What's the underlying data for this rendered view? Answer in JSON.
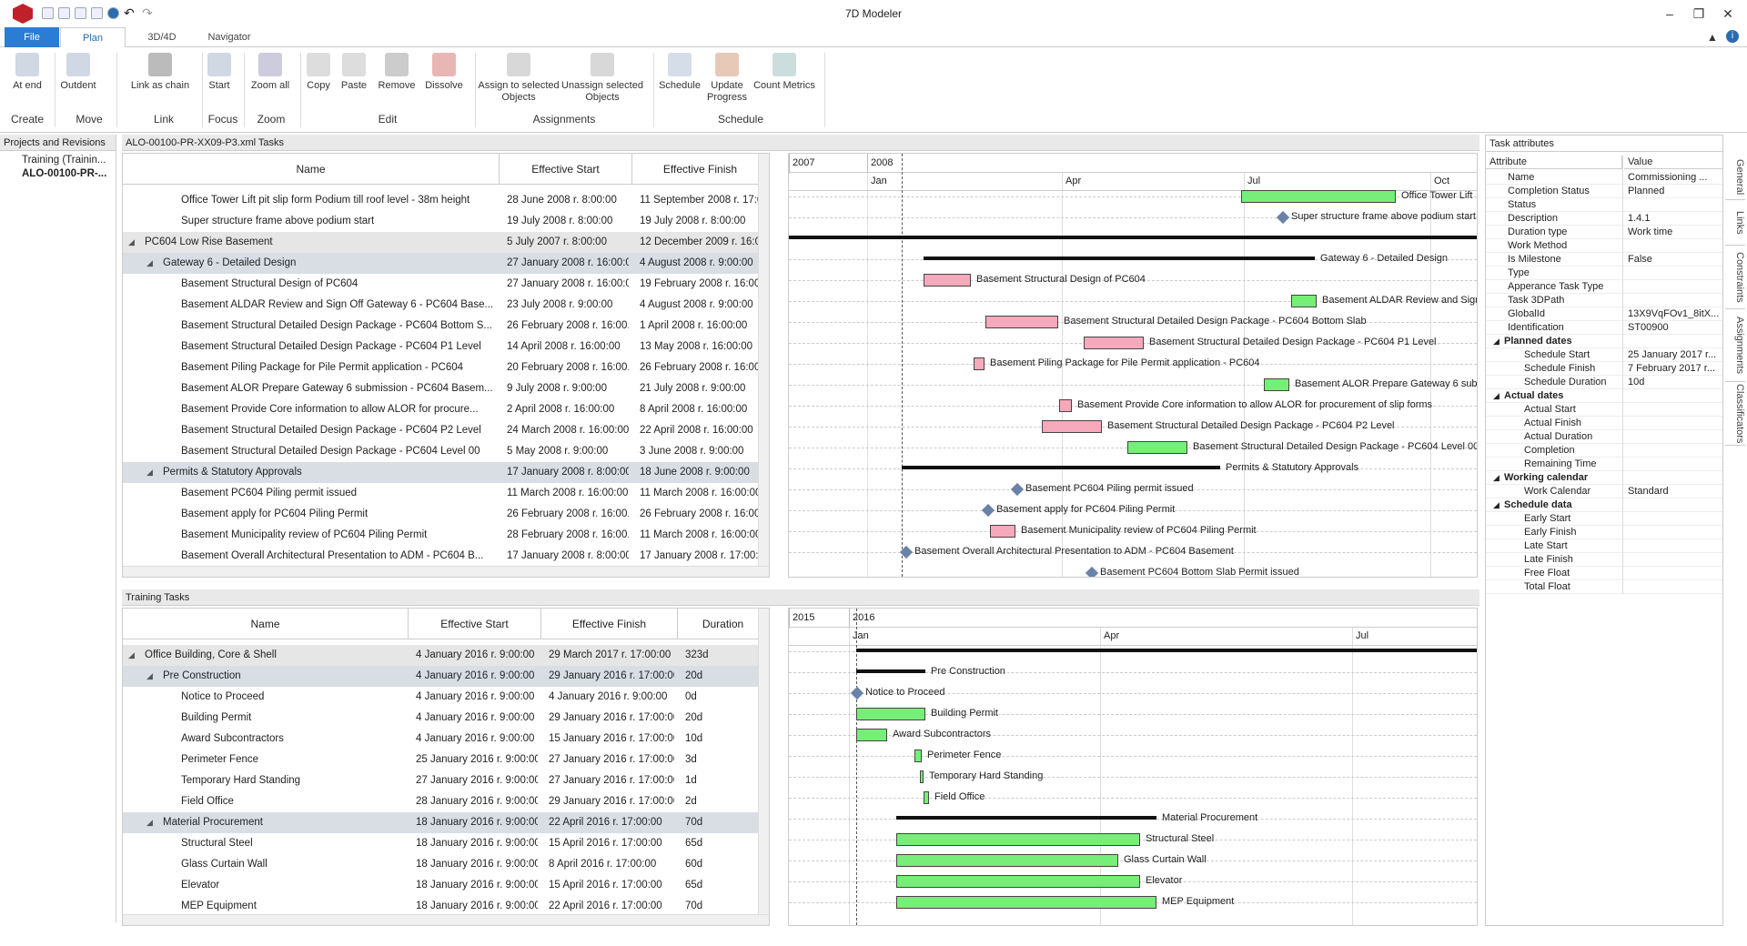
{
  "app": {
    "title": "7D Modeler"
  },
  "tabs": [
    "File",
    "Plan",
    "3D/4D",
    "Navigator"
  ],
  "ribbon": {
    "buttons": [
      {
        "label": "At end",
        "group": "Create",
        "icon": "insert-at-end-icon"
      },
      {
        "label": "Outdent",
        "group": "Move",
        "icon": "outdent-icon"
      },
      {
        "label": "Link as chain",
        "group": "Link",
        "icon": "link-chain-icon"
      },
      {
        "label": "Start",
        "group": "Focus",
        "icon": "focus-start-icon"
      },
      {
        "label": "Zoom all",
        "group": "Zoom",
        "icon": "zoom-all-icon"
      },
      {
        "label": "Copy",
        "group": "Edit",
        "icon": "copy-icon"
      },
      {
        "label": "Paste",
        "group": "Edit",
        "icon": "paste-icon"
      },
      {
        "label": "Remove",
        "group": "Edit",
        "icon": "trash-icon"
      },
      {
        "label": "Dissolve",
        "group": "Edit",
        "icon": "dissolve-icon"
      },
      {
        "label": "Assign to selected Objects",
        "group": "Assignments",
        "icon": "assign-icon"
      },
      {
        "label": "Unassign selected Objects",
        "group": "Assignments",
        "icon": "unassign-icon"
      },
      {
        "label": "Schedule",
        "group": "Schedule",
        "icon": "schedule-icon"
      },
      {
        "label": "Update Progress",
        "group": "Schedule",
        "icon": "update-progress-icon"
      },
      {
        "label": "Count Metrics",
        "group": "Schedule",
        "icon": "count-metrics-icon"
      }
    ],
    "groups": [
      "Create",
      "Move",
      "Link",
      "Focus",
      "Zoom",
      "Edit",
      "Assignments",
      "Schedule"
    ]
  },
  "projects": {
    "header": "Projects and Revisions",
    "items": [
      "Training (Trainin...",
      "ALO-00100-PR-..."
    ]
  },
  "top": {
    "title": "ALO-00100-PR-XX09-P3.xml Tasks",
    "columns": [
      "Name",
      "Effective Start",
      "Effective Finish"
    ],
    "rows": [
      {
        "name": "Office Tower Lift pit slip form Podium till roof level - 38m height",
        "start": "28 June 2008 r. 8:00:00",
        "finish": "11 September 2008 r. 17:0..."
      },
      {
        "name": "Super structure frame above podium start",
        "start": "19 July 2008 r. 8:00:00",
        "finish": "19 July 2008 r. 8:00:00"
      },
      {
        "name": "PC604 Low Rise Basement",
        "start": "5 July 2007 r. 8:00:00",
        "finish": "12 December 2009 r. 16:0..."
      },
      {
        "name": "Gateway 6 - Detailed Design",
        "start": "27 January 2008 r. 16:00:00",
        "finish": "4 August 2008 r. 9:00:00"
      },
      {
        "name": "Basement Structural Design of PC604",
        "start": "27 January 2008 r. 16:00:00",
        "finish": "19 February 2008 r. 16:00:00"
      },
      {
        "name": "Basement ALDAR Review and Sign Off Gateway 6 - PC604 Base...",
        "start": "23 July 2008 r. 9:00:00",
        "finish": "4 August 2008 r. 9:00:00"
      },
      {
        "name": "Basement Structural Detailed Design Package - PC604 Bottom S...",
        "start": "26 February 2008 r. 16:00...",
        "finish": "1 April 2008 r. 16:00:00"
      },
      {
        "name": "Basement Structural Detailed Design Package - PC604 P1 Level",
        "start": "14 April 2008 r. 16:00:00",
        "finish": "13 May 2008 r. 16:00:00"
      },
      {
        "name": "Basement Piling Package for Pile Permit application - PC604",
        "start": "20 February 2008 r. 16:00...",
        "finish": "26 February 2008 r. 16:00:00"
      },
      {
        "name": "Basement ALOR Prepare Gateway 6 submission - PC604 Basem...",
        "start": "9 July 2008 r. 9:00:00",
        "finish": "21 July 2008 r. 9:00:00"
      },
      {
        "name": "Basement Provide Core information to allow ALOR for procure...",
        "start": "2 April 2008 r. 16:00:00",
        "finish": "8 April 2008 r. 16:00:00"
      },
      {
        "name": "Basement Structural Detailed Design Package - PC604 P2 Level",
        "start": "24 March 2008 r. 16:00:00",
        "finish": "22 April 2008 r. 16:00:00"
      },
      {
        "name": "Basement Structural Detailed Design Package - PC604 Level 00",
        "start": "5 May 2008 r. 9:00:00",
        "finish": "3 June 2008 r. 9:00:00"
      },
      {
        "name": "Permits & Statutory Approvals",
        "start": "17 January 2008 r. 8:00:00",
        "finish": "18 June 2008 r. 9:00:00"
      },
      {
        "name": "Basement PC604 Piling permit issued",
        "start": "11 March 2008 r. 16:00:00",
        "finish": "11 March 2008 r. 16:00:00"
      },
      {
        "name": "Basement apply for PC604 Piling Permit",
        "start": "26 February 2008 r. 16:00...",
        "finish": "26 February 2008 r. 16:00:00"
      },
      {
        "name": "Basement Municipality review of PC604 Piling Permit",
        "start": "28 February 2008 r. 16:00...",
        "finish": "11 March 2008 r. 16:00:00"
      },
      {
        "name": "Basement Overall Architectural Presentation to ADM - PC604 B...",
        "start": "17 January 2008 r. 8:00:00",
        "finish": "17 January 2008 r. 17:00:00"
      }
    ],
    "scale": {
      "years": [
        "2007",
        "2008"
      ],
      "months": [
        "Jan",
        "Apr",
        "Jul",
        "Oct"
      ]
    },
    "labels": [
      "Office Tower Lift",
      "Super structure frame above podium start",
      "Gateway 6 - Detailed Design",
      "Basement Structural Design of PC604",
      "Basement ALDAR Review and Sign",
      "Basement Structural Detailed Design Package - PC604 Bottom Slab",
      "Basement Structural Detailed Design Package - PC604 P1 Level",
      "Basement Piling Package for Pile Permit application - PC604",
      "Basement ALOR Prepare Gateway 6 subm",
      "Basement Provide Core information to allow ALOR for procurement of slip forms",
      "Basement Structural Detailed Design Package - PC604 P2 Level",
      "Basement Structural Detailed Design Package - PC604 Level 00",
      "Permits & Statutory Approvals",
      "Basement PC604 Piling permit issued",
      "Basement apply for PC604 Piling Permit",
      "Basement Municipality review of PC604 Piling Permit",
      "Basement Overall Architectural Presentation to ADM - PC604 Basement",
      "Basement PC604 Bottom Slab Permit issued"
    ]
  },
  "bottom": {
    "title": "Training Tasks",
    "columns": [
      "Name",
      "Effective Start",
      "Effective Finish",
      "Duration"
    ],
    "rows": [
      {
        "name": "Office Building, Core & Shell",
        "start": "4 January 2016 r. 9:00:00",
        "finish": "29 March 2017 r. 17:00:00",
        "dur": "323d"
      },
      {
        "name": "Pre Construction",
        "start": "4 January 2016 r. 9:00:00",
        "finish": "29 January 2016 r. 17:00:00",
        "dur": "20d"
      },
      {
        "name": "Notice to Proceed",
        "start": "4 January 2016 r. 9:00:00",
        "finish": "4 January 2016 r. 9:00:00",
        "dur": "0d"
      },
      {
        "name": "Building Permit",
        "start": "4 January 2016 r. 9:00:00",
        "finish": "29 January 2016 r. 17:00:00",
        "dur": "20d"
      },
      {
        "name": "Award Subcontractors",
        "start": "4 January 2016 r. 9:00:00",
        "finish": "15 January 2016 r. 17:00:00",
        "dur": "10d"
      },
      {
        "name": "Perimeter Fence",
        "start": "25 January 2016 r. 9:00:00",
        "finish": "27 January 2016 r. 17:00:00",
        "dur": "3d"
      },
      {
        "name": "Temporary Hard Standing",
        "start": "27 January 2016 r. 9:00:00",
        "finish": "27 January 2016 r. 17:00:00",
        "dur": "1d"
      },
      {
        "name": "Field Office",
        "start": "28 January 2016 r. 9:00:00",
        "finish": "29 January 2016 r. 17:00:00",
        "dur": "2d"
      },
      {
        "name": "Material Procurement",
        "start": "18 January 2016 r. 9:00:00",
        "finish": "22 April 2016 r. 17:00:00",
        "dur": "70d"
      },
      {
        "name": "Structural Steel",
        "start": "18 January 2016 r. 9:00:00",
        "finish": "15 April 2016 r. 17:00:00",
        "dur": "65d"
      },
      {
        "name": "Glass Curtain Wall",
        "start": "18 January 2016 r. 9:00:00",
        "finish": "8 April 2016 r. 17:00:00",
        "dur": "60d"
      },
      {
        "name": "Elevator",
        "start": "18 January 2016 r. 9:00:00",
        "finish": "15 April 2016 r. 17:00:00",
        "dur": "65d"
      },
      {
        "name": "MEP Equipment",
        "start": "18 January 2016 r. 9:00:00",
        "finish": "22 April 2016 r. 17:00:00",
        "dur": "70d"
      }
    ],
    "scale": {
      "years": [
        "2015",
        "2016"
      ],
      "months": [
        "Jan",
        "Apr",
        "Jul"
      ]
    }
  },
  "attributes": {
    "title": "Task attributes",
    "columns": [
      "Attribute",
      "Value"
    ],
    "rows": [
      {
        "k": "Name",
        "v": "Commissioning ..."
      },
      {
        "k": "Completion Status",
        "v": "Planned"
      },
      {
        "k": "Status",
        "v": ""
      },
      {
        "k": "Description",
        "v": "1.4.1"
      },
      {
        "k": "Duration type",
        "v": "Work time"
      },
      {
        "k": "Work Method",
        "v": ""
      },
      {
        "k": "Is Milestone",
        "v": "False"
      },
      {
        "k": "Type",
        "v": ""
      },
      {
        "k": "Apperance Task Type",
        "v": ""
      },
      {
        "k": "Task 3DPath",
        "v": ""
      },
      {
        "k": "GlobalId",
        "v": "13X9VqFOv1_8itX..."
      },
      {
        "k": "Identification",
        "v": "ST00900"
      },
      {
        "k": "Planned dates",
        "v": "",
        "h": true
      },
      {
        "k": "Schedule Start",
        "v": "25 January 2017 r...",
        "i": true
      },
      {
        "k": "Schedule Finish",
        "v": "7 February 2017 r...",
        "i": true
      },
      {
        "k": "Schedule Duration",
        "v": "10d",
        "i": true
      },
      {
        "k": "Actual dates",
        "v": "",
        "h": true
      },
      {
        "k": "Actual Start",
        "v": "",
        "i": true
      },
      {
        "k": "Actual Finish",
        "v": "",
        "i": true
      },
      {
        "k": "Actual Duration",
        "v": "",
        "i": true
      },
      {
        "k": "Completion",
        "v": "",
        "i": true
      },
      {
        "k": "Remaining Time",
        "v": "",
        "i": true
      },
      {
        "k": "Working calendar",
        "v": "",
        "h": true
      },
      {
        "k": "Work Calendar",
        "v": "Standard",
        "i": true
      },
      {
        "k": "Schedule data",
        "v": "",
        "h": true
      },
      {
        "k": "Early Start",
        "v": "",
        "i": true
      },
      {
        "k": "Early Finish",
        "v": "",
        "i": true
      },
      {
        "k": "Late Start",
        "v": "",
        "i": true
      },
      {
        "k": "Late Finish",
        "v": "",
        "i": true
      },
      {
        "k": "Free Float",
        "v": "",
        "i": true
      },
      {
        "k": "Total Float",
        "v": "",
        "i": true
      }
    ],
    "sidetabs": [
      "General",
      "Links",
      "Constraints",
      "Assignments",
      "Classificators"
    ]
  }
}
